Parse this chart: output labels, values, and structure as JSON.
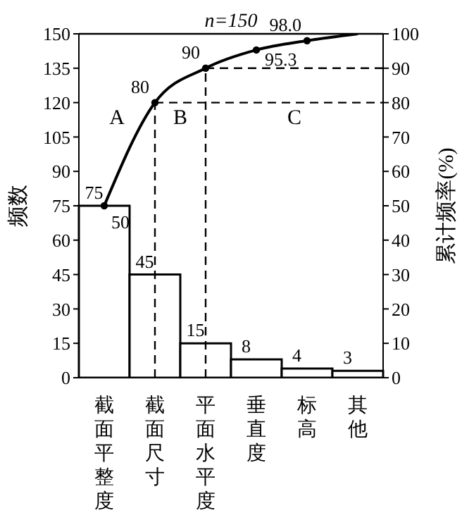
{
  "chart_data": {
    "type": "bar",
    "categories": [
      "截面平整度",
      "截面尺寸",
      "平面水平度",
      "垂直度",
      "标高",
      "其他"
    ],
    "ylabel": "频数",
    "y2label": "累计频率(%)",
    "series": [
      {
        "color": "#ffffff",
        "values": [
          75,
          45,
          15,
          8,
          4,
          3
        ]
      },
      {
        "type": "line",
        "axis": "y2",
        "color": "#000000",
        "values": [
          50,
          80,
          90,
          95.3,
          98.0,
          100
        ],
        "value_labels": [
          "50",
          "80",
          "90",
          "95.3",
          "98.0",
          null
        ]
      }
    ],
    "data_labels": true,
    "marker": "circle",
    "ylim": [
      0,
      150
    ],
    "yticks": [
      0,
      15,
      30,
      45,
      60,
      75,
      90,
      105,
      120,
      135,
      150
    ],
    "y2lim": [
      0,
      100
    ],
    "y2ticks": [
      0,
      10,
      20,
      30,
      40,
      50,
      60,
      70,
      80,
      90,
      100
    ],
    "ref_lines": [
      {
        "axis": "y",
        "value": 150,
        "label": "n=150",
        "line_style": "solid"
      },
      {
        "axis": "y2",
        "value": 80,
        "line_style": "dashed"
      },
      {
        "axis": "y2",
        "value": 90,
        "line_style": "dashed"
      }
    ],
    "annotations": [
      "A",
      "B",
      "C"
    ]
  }
}
